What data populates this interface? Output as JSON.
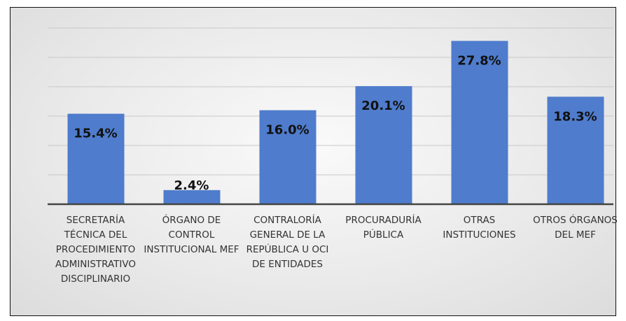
{
  "chart_data": {
    "type": "bar",
    "categories": [
      "SECRETARÍA TÉCNICA DEL PROCEDIMIENTO ADMINISTRATIVO DISCIPLINARIO",
      "ÓRGANO DE CONTROL INSTITUCIONAL MEF",
      "CONTRALORÍA GENERAL DE LA REPÚBLICA U OCI DE ENTIDADES",
      "PROCURADURÍA PÚBLICA",
      "OTRAS INSTITUCIONES",
      "OTROS ÓRGANOS DEL MEF"
    ],
    "values": [
      15.4,
      2.4,
      16.0,
      20.1,
      27.8,
      18.3
    ],
    "value_labels": [
      "15.4%",
      "2.4%",
      "16.0%",
      "20.1%",
      "27.8%",
      "18.3%"
    ],
    "color": "#4f7ccc",
    "ylim": [
      0,
      30
    ],
    "yticks": [
      0,
      5,
      10,
      15,
      20,
      25,
      30
    ],
    "grid": true
  }
}
